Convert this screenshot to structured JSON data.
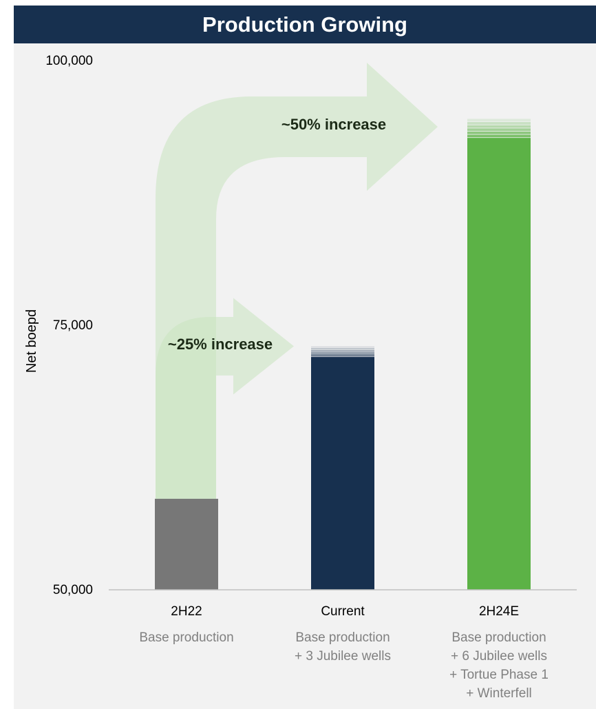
{
  "chart_data": {
    "type": "bar",
    "title": "Production Growing",
    "ylabel": "Net boepd",
    "xlabel": "",
    "ylim": [
      50000,
      100000
    ],
    "yticks": [
      {
        "value": 100000,
        "label": "100,000"
      },
      {
        "value": 75000,
        "label": "75,000"
      },
      {
        "value": 50000,
        "label": "50,000"
      }
    ],
    "grid": false,
    "categories": [
      {
        "name": "2H22",
        "sublabels": [
          "Base production"
        ]
      },
      {
        "name": "Current",
        "sublabels": [
          "Base production",
          "+ 3 Jubilee wells"
        ]
      },
      {
        "name": "2H24E",
        "sublabels": [
          "Base production",
          "+ 6 Jubilee wells",
          "+ Tortue Phase 1",
          "+ Winterfell"
        ]
      }
    ],
    "values": [
      58600,
      73000,
      94500
    ],
    "solid_values": [
      58600,
      72000,
      92700
    ],
    "bar_colors": [
      "#777777",
      "#17304f",
      "#5cb246"
    ],
    "annotations": [
      {
        "text": "~25% increase",
        "from": 0,
        "to": 1
      },
      {
        "text": "~50% increase",
        "from": 0,
        "to": 2
      }
    ],
    "colors": {
      "title_bg": "#17304f",
      "background": "#f2f2f2",
      "arrow_fill": "#c8e4c0",
      "sublabel_text": "#808080"
    }
  }
}
